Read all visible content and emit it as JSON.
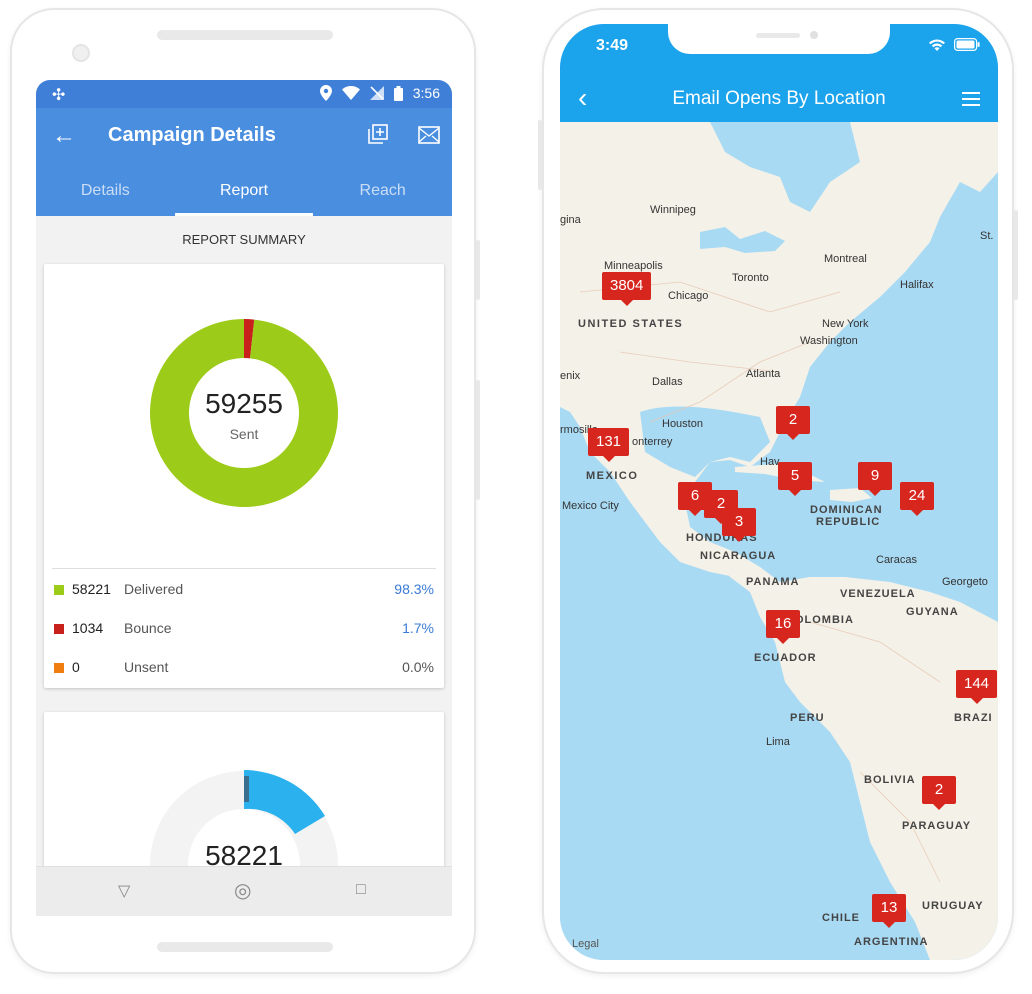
{
  "android": {
    "status": {
      "time": "3:56"
    },
    "appbar": {
      "title": "Campaign Details",
      "back_icon": "arrow-back-icon",
      "action1_icon": "add-copy-icon",
      "action2_icon": "mail-icon"
    },
    "tabs": [
      {
        "label": "Details"
      },
      {
        "label": "Report"
      },
      {
        "label": "Reach"
      }
    ],
    "summary_label": "REPORT SUMMARY",
    "donut": {
      "value": "59255",
      "label": "Sent"
    },
    "legend": [
      {
        "count": "58221",
        "label": "Delivered",
        "pct": "98.3%",
        "color": "#9ccb19"
      },
      {
        "count": "1034",
        "label": "Bounce",
        "pct": "1.7%",
        "color": "#c8201b"
      },
      {
        "count": "0",
        "label": "Unsent",
        "pct": "0.0%",
        "color": "#ef7d0f"
      }
    ],
    "card2": {
      "value": "58221"
    },
    "nav": {
      "back": "▽",
      "home": "◎",
      "recents": "□"
    }
  },
  "chart_data": [
    {
      "type": "pie",
      "categories": [
        "Delivered",
        "Bounce",
        "Unsent"
      ],
      "values": [
        58221,
        1034,
        0
      ],
      "colors": [
        "#9ccb19",
        "#c8201b",
        "#ef7d0f"
      ]
    }
  ],
  "iphone": {
    "status": {
      "time": "3:49"
    },
    "title": "Email Opens By Location",
    "back_icon": "chevron-left-icon",
    "menu_icon": "hamburger-icon",
    "legal": "Legal",
    "map_labels": [
      {
        "text": "gina"
      },
      {
        "text": "Winnipeg"
      },
      {
        "text": "Minneapolis"
      },
      {
        "text": "Chicago"
      },
      {
        "text": "Toronto"
      },
      {
        "text": "Montreal"
      },
      {
        "text": "Halifax"
      },
      {
        "text": "St."
      },
      {
        "text": "UNITED STATES"
      },
      {
        "text": "New York"
      },
      {
        "text": "Washington"
      },
      {
        "text": "enix"
      },
      {
        "text": "Dallas"
      },
      {
        "text": "Atlanta"
      },
      {
        "text": "Houston"
      },
      {
        "text": "rmosillo"
      },
      {
        "text": "onterrey"
      },
      {
        "text": "Hav"
      },
      {
        "text": "MEXICO"
      },
      {
        "text": "Mexico City"
      },
      {
        "text": "DOMINICAN"
      },
      {
        "text": "REPUBLIC"
      },
      {
        "text": "HONDURAS"
      },
      {
        "text": "NICARAGUA"
      },
      {
        "text": "PANAMA"
      },
      {
        "text": "Caracas"
      },
      {
        "text": "VENEZUELA"
      },
      {
        "text": "Georgeto"
      },
      {
        "text": "GUYANA"
      },
      {
        "text": "COLOMBIA"
      },
      {
        "text": "ECUADOR"
      },
      {
        "text": "PERU"
      },
      {
        "text": "BRAZI"
      },
      {
        "text": "Lima"
      },
      {
        "text": "BOLIVIA"
      },
      {
        "text": "PARAGUAY"
      },
      {
        "text": "CHILE"
      },
      {
        "text": "URUGUAY"
      },
      {
        "text": "ARGENTINA"
      }
    ],
    "markers": [
      {
        "count": "3804"
      },
      {
        "count": "2"
      },
      {
        "count": "131"
      },
      {
        "count": "5"
      },
      {
        "count": "9"
      },
      {
        "count": "6"
      },
      {
        "count": "2"
      },
      {
        "count": "3"
      },
      {
        "count": "24"
      },
      {
        "count": "16"
      },
      {
        "count": "144"
      },
      {
        "count": "2"
      },
      {
        "count": "13"
      }
    ]
  }
}
